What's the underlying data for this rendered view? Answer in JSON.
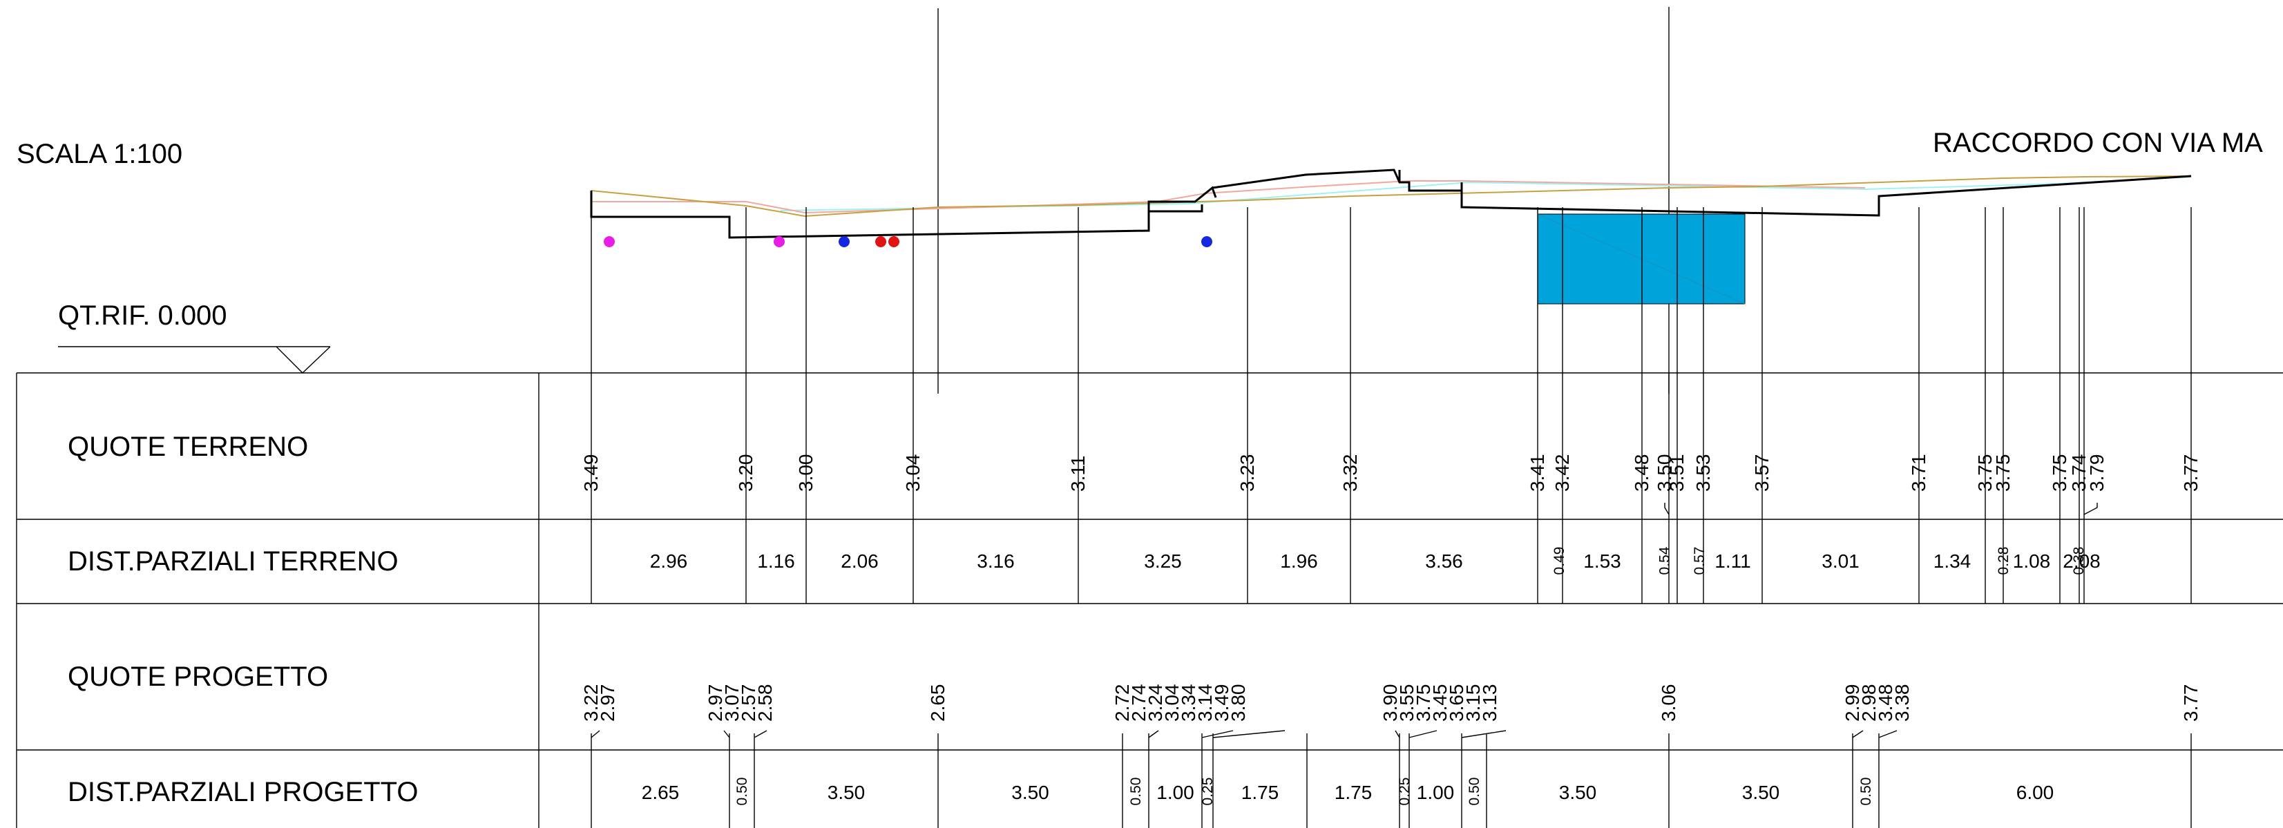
{
  "drawing": {
    "scale_label": "SCALA 1:100",
    "title": "RACCORDO CON VIA MA",
    "reference_label": "QT.RIF. 0.000"
  },
  "rows": {
    "quote_terreno": "QUOTE TERRENO",
    "dist_parziali_terreno": "DIST.PARZIALI TERRENO",
    "quote_progetto": "QUOTE PROGETTO",
    "dist_parziali_progetto": "DIST.PARZIALI PROGETTO"
  },
  "quote_terreno": [
    "3.49",
    "3.20",
    "3.00",
    "3.04",
    "3.11",
    "3.23",
    "3.32",
    "3.41",
    "3.42",
    "3.48",
    "3.50",
    "3.51",
    "3.53",
    "3.57",
    "3.71",
    "3.75",
    "3.75",
    "3.75",
    "3.74",
    "3.79",
    "3.77"
  ],
  "dist_parziali_terreno": [
    "2.96",
    "1.16",
    "2.06",
    "3.16",
    "3.25",
    "1.96",
    "3.56",
    "0.49",
    "1.53",
    "0.54",
    "0.57",
    "1.11",
    "3.01",
    "1.34",
    "0.28",
    "1.08",
    "0.38",
    "2.08"
  ],
  "quote_progetto": [
    "3.22",
    "2.97",
    "2.97",
    "3.07",
    "2.57",
    "2.58",
    "2.65",
    "2.72",
    "2.74",
    "3.24",
    "3.04",
    "3.34",
    "3.14",
    "3.49",
    "3.80",
    "3.90",
    "3.55",
    "3.75",
    "3.45",
    "3.65",
    "3.15",
    "3.13",
    "3.06",
    "2.99",
    "2.98",
    "3.48",
    "3.38",
    "3.77"
  ],
  "dist_parziali_progetto": [
    "2.65",
    "0.50",
    "3.50",
    "3.50",
    "0.50",
    "1.00",
    "0.25",
    "1.75",
    "1.75",
    "0.25",
    "1.00",
    "0.50",
    "3.50",
    "3.50",
    "0.50",
    "6.00"
  ],
  "colors": {
    "line": "#000000",
    "terrain_profile": "#c8a040",
    "light_profile": "#9ff2f2",
    "salmon_profile": "#f2a8a0",
    "structure_fill": "#00a3da",
    "marker_magenta": "#e61ee6",
    "marker_blue": "#1428e0",
    "marker_red": "#e01414"
  }
}
